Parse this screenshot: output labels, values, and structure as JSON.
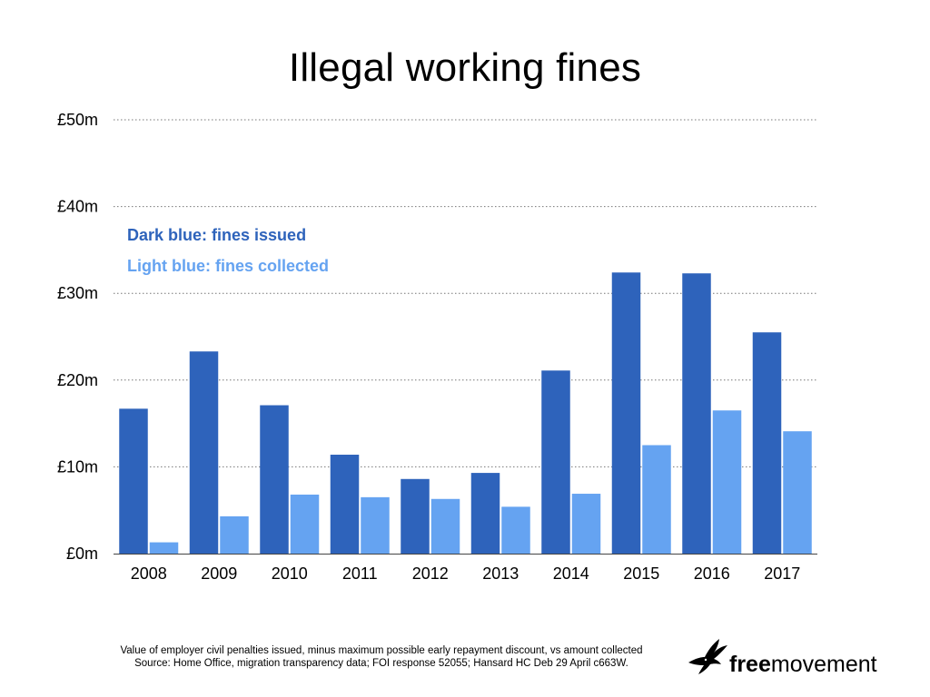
{
  "title": "Illegal working fines",
  "legend": {
    "issued": "Dark blue: fines issued",
    "collected": "Light blue: fines collected"
  },
  "footnote": {
    "line1": "Value of employer civil penalties issued, minus maximum possible early repayment discount, vs amount collected",
    "line2": "Source: Home Office, migration transparency data; FOI response 52055; Hansard HC Deb 29 April c663W."
  },
  "logo": {
    "bold": "free",
    "regular": "movement",
    "icon": "bird-icon"
  },
  "colors": {
    "issued": "#2e63bb",
    "collected": "#65a3f1",
    "grid": "#777777",
    "axis": "#444444"
  },
  "chart_data": {
    "type": "bar",
    "title": "Illegal working fines",
    "categories": [
      "2008",
      "2009",
      "2010",
      "2011",
      "2012",
      "2013",
      "2014",
      "2015",
      "2016",
      "2017"
    ],
    "series": [
      {
        "values": [
          16.7,
          23.3,
          17.1,
          11.4,
          8.6,
          9.3,
          21.1,
          32.4,
          32.3,
          25.5
        ]
      },
      {
        "values": [
          1.3,
          4.3,
          6.8,
          6.5,
          6.3,
          5.4,
          6.9,
          12.5,
          16.5,
          14.1
        ]
      }
    ],
    "ylim": [
      0,
      50
    ],
    "yticks": [
      0,
      10,
      20,
      30,
      40,
      50
    ],
    "ytick_labels": [
      "£0m",
      "£10m",
      "£20m",
      "£30m",
      "£40m",
      "£50m"
    ],
    "xlabel": "",
    "ylabel": "",
    "grid": true,
    "grid_style": "dotted"
  }
}
